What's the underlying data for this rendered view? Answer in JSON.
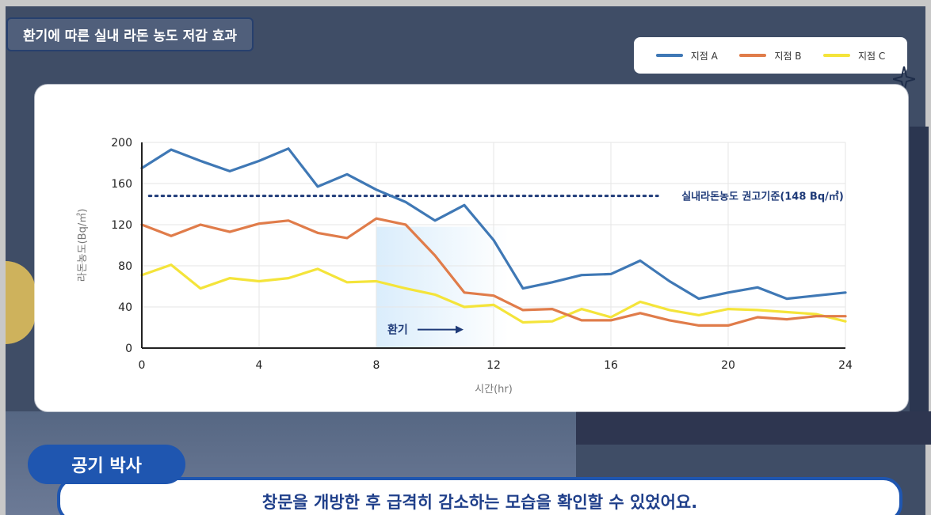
{
  "title": "환기에 따른 실내 라돈 농도 저감 효과",
  "legend": {
    "items": [
      {
        "label": "지점 A",
        "color": "#3f78b5"
      },
      {
        "label": "지점 B",
        "color": "#e07c4a"
      },
      {
        "label": "지점 C",
        "color": "#f4e43a"
      }
    ]
  },
  "chart_data": {
    "type": "line",
    "xlabel": "시간(hr)",
    "ylabel": "라돈농도(Bq/㎥)",
    "xlim": [
      0,
      24
    ],
    "ylim": [
      0,
      200
    ],
    "xticks": [
      0,
      4,
      8,
      12,
      16,
      20,
      24
    ],
    "yticks": [
      0,
      40,
      80,
      120,
      160,
      200
    ],
    "grid": true,
    "x": [
      0,
      1,
      2,
      3,
      4,
      5,
      6,
      7,
      8,
      9,
      10,
      11,
      12,
      13,
      14,
      15,
      16,
      17,
      18,
      19,
      20,
      21,
      22,
      23,
      24
    ],
    "series": [
      {
        "name": "지점 A",
        "color": "#3f78b5",
        "values": [
          175,
          193,
          182,
          172,
          182,
          194,
          157,
          169,
          154,
          142,
          124,
          139,
          105,
          58,
          64,
          71,
          72,
          85,
          65,
          48,
          54,
          59,
          48,
          51,
          54
        ]
      },
      {
        "name": "지점 B",
        "color": "#e07c4a",
        "values": [
          120,
          109,
          120,
          113,
          121,
          124,
          112,
          107,
          126,
          120,
          90,
          54,
          51,
          37,
          38,
          27,
          27,
          34,
          27,
          22,
          22,
          30,
          28,
          31,
          31
        ]
      },
      {
        "name": "지점 C",
        "color": "#f4e43a",
        "values": [
          71,
          81,
          58,
          68,
          65,
          68,
          77,
          64,
          65,
          58,
          52,
          40,
          42,
          25,
          26,
          38,
          30,
          45,
          37,
          32,
          38,
          37,
          35,
          33,
          26
        ]
      }
    ],
    "reference_line": {
      "value": 148,
      "label": "실내라돈농도 권고기준(148 Bq/㎥)",
      "color": "#1e3a78"
    },
    "annotation": {
      "label": "환기",
      "x_start": 8,
      "x_end": 12.5
    }
  },
  "speaker": "공기 박사",
  "subtitle": "창문을 개방한 후 급격히 감소하는 모습을 확인할 수 있었어요."
}
